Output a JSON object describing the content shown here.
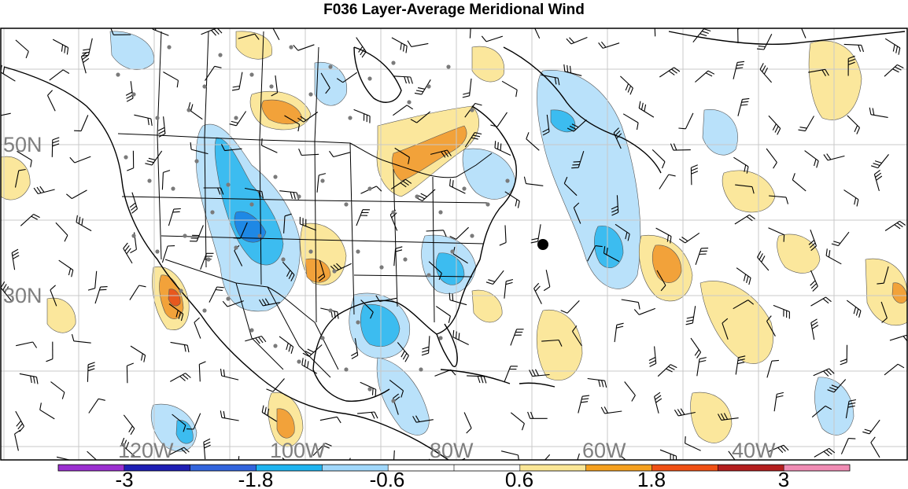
{
  "title": "F036 Layer-Average Meridional Wind",
  "latitude_labels": [
    "50N",
    "30N"
  ],
  "longitude_labels": [
    "120W",
    "100W",
    "80W",
    "60W",
    "40W"
  ],
  "colorbar": {
    "colors": [
      "#9b30d0",
      "#1e1eb4",
      "#3264dc",
      "#1eb4f0",
      "#a0d7fa",
      "#ffffff",
      "#ffffff",
      "#fae696",
      "#f5a01e",
      "#f05014",
      "#b41e1e",
      "#f08cb4"
    ],
    "labels": [
      "-3",
      "-1.8",
      "-0.6",
      "0.6",
      "1.8",
      "3"
    ]
  },
  "map_colors": {
    "negative_light": "#b9e1fa",
    "negative_mid": "#3cbcf0",
    "negative_strong": "#1e88e5",
    "positive_light": "#fbe79c",
    "positive_mid": "#f2a23a",
    "positive_strong": "#e8581e"
  },
  "observation_marker": "black-dot",
  "symbols": [
    "wind-barb",
    "station-dot"
  ]
}
